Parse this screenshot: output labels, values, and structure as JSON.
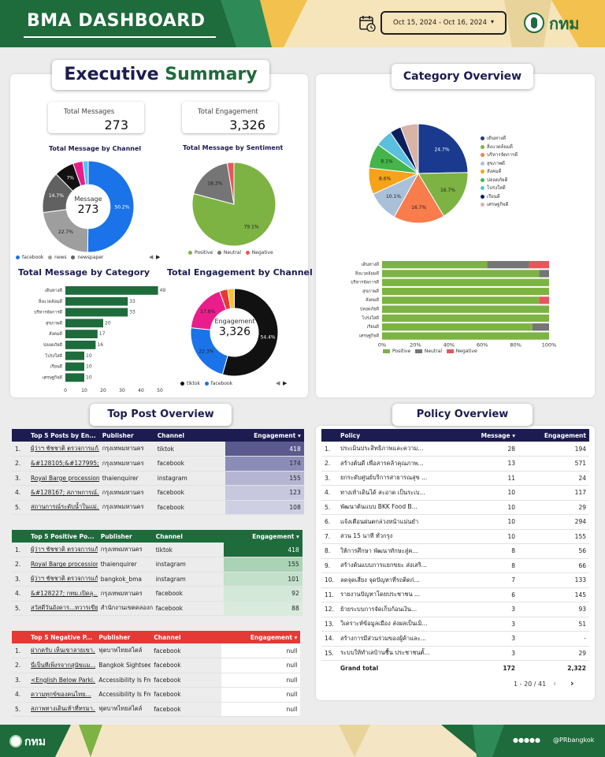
{
  "header": {
    "title": "BMA DASHBOARD",
    "date_range": "Oct 15, 2024 - Oct 16, 2024",
    "logo_text": "กทม"
  },
  "exec": {
    "title1": "Executive",
    "title2": "Summary",
    "kpi_messages_label": "Total Messages",
    "kpi_messages": "273",
    "kpi_engagement_label": "Total Engagement",
    "kpi_engagement": "3,326"
  },
  "colors": {
    "facebook": "#1a73e8",
    "news": "#9e9e9e",
    "newspaper": "#616161",
    "black": "#111111",
    "pink": "#e91e8c",
    "green": "#7cb342",
    "dark_green": "#1e6b3c",
    "negative": "#e5575b",
    "navy": "#1c1c50"
  },
  "chart_data": [
    {
      "type": "pie",
      "title": "Total Message by Channel",
      "center_label": "Message",
      "center_value": "273",
      "labels": [
        "facebook",
        "news",
        "newspaper",
        "instagram",
        "tiktok",
        "other"
      ],
      "values": [
        50.2,
        22.7,
        14.7,
        7.0,
        3.5,
        1.9
      ],
      "slice_labels": [
        "50.2%",
        "22.7%",
        "14.7%",
        "7%",
        "",
        ""
      ],
      "legend": [
        "facebook",
        "news",
        "newspaper"
      ]
    },
    {
      "type": "pie",
      "title": "Total Message by Sentiment",
      "labels": [
        "Positive",
        "Neutral",
        "Negative"
      ],
      "values": [
        79.1,
        18.3,
        2.6
      ],
      "slice_labels": [
        "79.1%",
        "18.3%",
        ""
      ],
      "legend": [
        "Positive",
        "Neutral",
        "Negative"
      ]
    },
    {
      "type": "bar",
      "title": "Total Message by Category",
      "categories": [
        "เดินทางดี",
        "สิ่งแวดล้อมดี",
        "บริหารจัดการดี",
        "สุขภาพดี",
        "สังคมดี",
        "ปลอดภัยดี",
        "โปร่งใสดี",
        "เรียนดี",
        "เศรษฐกิจดี"
      ],
      "values": [
        49,
        33,
        33,
        20,
        17,
        16,
        10,
        10,
        10
      ],
      "xticks": [
        "0",
        "10",
        "20",
        "30",
        "40",
        "50"
      ],
      "xlim": [
        0,
        50
      ]
    },
    {
      "type": "pie",
      "title": "Total Engagement by Channel",
      "center_label": "Engagement",
      "center_value": "3,326",
      "labels": [
        "tiktok",
        "facebook",
        "pink",
        "red",
        "other"
      ],
      "values": [
        54.4,
        22.3,
        17.8,
        3.0,
        2.5
      ],
      "slice_labels": [
        "54.4%",
        "22.3%",
        "17.8%",
        "",
        ""
      ],
      "legend": [
        "tiktok",
        "facebook"
      ]
    },
    {
      "type": "pie",
      "title": "Category Overview",
      "labels": [
        "เดินทางดี",
        "สิ่งแวดล้อมดี",
        "บริหารจัดการดี",
        "สุขภาพดี",
        "สังคมดี",
        "ปลอดภัยดี",
        "โปร่งใสดี",
        "เรียนดี",
        "เศรษฐกิจดี"
      ],
      "values": [
        24.7,
        16.7,
        16.7,
        10.1,
        8.6,
        8.1,
        5.6,
        3.7,
        5.8
      ],
      "slice_labels": [
        "24.7%",
        "16.7%",
        "16.7%",
        "10.1%",
        "8.6%",
        "8.1%",
        "",
        "",
        ""
      ],
      "colors": [
        "#1a3a8f",
        "#7cb342",
        "#f97c4c",
        "#a9c0d8",
        "#f6a21a",
        "#44b549",
        "#5bc0de",
        "#0a1f5c",
        "#d9b3a6"
      ]
    },
    {
      "type": "stacked-bar-100",
      "categories": [
        "เดินทางดี",
        "สิ่งแวดล้อมดี",
        "บริหารจัดการดี",
        "สุขภาพดี",
        "สังคมดี",
        "ปลอดภัยดี",
        "โปร่งใสดี",
        "เรียนดี",
        "เศรษฐกิจดี"
      ],
      "series": [
        {
          "name": "Positive",
          "values": [
            63,
            94,
            100,
            100,
            94,
            100,
            100,
            90,
            100
          ]
        },
        {
          "name": "Neutral",
          "values": [
            25,
            6,
            0,
            0,
            0,
            0,
            0,
            10,
            0
          ]
        },
        {
          "name": "Negative",
          "values": [
            12,
            0,
            0,
            0,
            6,
            0,
            0,
            0,
            0
          ]
        }
      ],
      "xticks": [
        "0%",
        "20%",
        "40%",
        "60%",
        "80%",
        "100%"
      ]
    }
  ],
  "top_posts": {
    "title": "Top Post Overview",
    "t1": {
      "headers": [
        "Top 5 Posts by En...",
        "Publisher",
        "Channel",
        "Engagement ▾"
      ],
      "rows": [
        [
          "1.",
          "ผู้ว่าฯ ชัชชาติ ตรวจการแก้...",
          "กรุงเทพมหานคร",
          "tiktok",
          "418"
        ],
        [
          "2.",
          "&#128105;&#127995;...",
          "กรุงเทพมหานคร",
          "facebook",
          "174"
        ],
        [
          "3.",
          "Royal Barge procession...",
          "thaienquirer",
          "instagram",
          "155"
        ],
        [
          "4.",
          "&#128167; สภาพการณ์...",
          "กรุงเทพมหานคร",
          "facebook",
          "123"
        ],
        [
          "5.",
          "สถานการณ์ระดับน้ำในแม่...",
          "กรุงเทพมหานคร",
          "facebook",
          "108"
        ]
      ]
    },
    "t2": {
      "headers": [
        "Top 5 Positive Po...",
        "Publisher",
        "Channel",
        "Engagement ▾"
      ],
      "rows": [
        [
          "1.",
          "ผู้ว่าฯ ชัชชาติ ตรวจการแก้...",
          "กรุงเทพมหานคร",
          "tiktok",
          "418"
        ],
        [
          "2.",
          "Royal Barge procession...",
          "thaienquirer",
          "instagram",
          "155"
        ],
        [
          "3.",
          "ผู้ว่าฯ ชัชชาติ ตรวจการแก้...",
          "bangkok_bma",
          "instagram",
          "101"
        ],
        [
          "4.",
          "&#128227; กทม.เปิดลุ...",
          "กรุงเทพมหานคร",
          "facebook",
          "92"
        ],
        [
          "5.",
          "สวัสดีวันอังคาร...ทวารเขีย...",
          "สำนักงานเขตคลองกระดัง L...",
          "facebook",
          "88"
        ]
      ]
    },
    "t3": {
      "headers": [
        "Top 5 Negative P...",
        "Publisher",
        "Channel",
        "Engagement ▾"
      ],
      "rows": [
        [
          "1.",
          "ฝากครับ เห็นเขาลายเขา...",
          "ฟุตบาทไทยสไตล์",
          "facebook",
          "null"
        ],
        [
          "2.",
          "นี่เป็นทีเพิ่งรจากสุนัขแม...",
          "Bangkok Sightseeing",
          "facebook",
          "null"
        ],
        [
          "3.",
          "<English Below Parki...",
          "Accessibility Is Freed...",
          "facebook",
          "null"
        ],
        [
          "4.",
          "ความทุกข์ของคนไทย...",
          "Accessibility Is Freed...",
          "facebook",
          "null"
        ],
        [
          "5.",
          "สภาพทางเดินเท้าที่ทรมา...",
          "ฟุตบาทไทยสไตล์",
          "facebook",
          "null"
        ]
      ]
    }
  },
  "policy": {
    "title": "Policy Overview",
    "headers": [
      "Policy",
      "Message ▾",
      "Engagement"
    ],
    "rows": [
      [
        "1.",
        "ประเมินประสิทธิภาพและความ...",
        "28",
        "194"
      ],
      [
        "2.",
        "สร้างต้นดี เพื่อสารคล้าคุณภาพ...",
        "13",
        "571"
      ],
      [
        "3.",
        "ยกระดับศูนย์บริการสาธารณสุข ...",
        "11",
        "24"
      ],
      [
        "4.",
        "ทางเท้าเดินได้ สะอาด เป็นระเบ...",
        "10",
        "117"
      ],
      [
        "5.",
        "พัฒนาต้นแบบ BKK Food B...",
        "10",
        "29"
      ],
      [
        "6.",
        "แจ้งเตือนฝนตกล่วงหน้าแม่นยำ",
        "10",
        "294"
      ],
      [
        "7.",
        "สวน 15 นาที ทั่วกรุง",
        "10",
        "155"
      ],
      [
        "8.",
        "ให้การศึกษา พัฒนาทักษะสู่ค...",
        "8",
        "56"
      ],
      [
        "9.",
        "สร้างต้นแบบการแยกขยะ ส่งเสริ...",
        "8",
        "66"
      ],
      [
        "10.",
        "ลดจุดเสี่ยง จุดปัญหาที่รถติดก่...",
        "7",
        "133"
      ],
      [
        "11.",
        "รายงานปัญหาโดยประชาชน ...",
        "6",
        "145"
      ],
      [
        "12.",
        "ย้ายระบบการจัดเก็บก้อนเงิน...",
        "3",
        "93"
      ],
      [
        "13.",
        "วิเคราะห์ข้อมูลเมือง ส่งผลเป็นเมิ...",
        "3",
        "51"
      ],
      [
        "14.",
        "สร้างการมีส่วนร่วมของผู้ค้าและ...",
        "3",
        "-"
      ],
      [
        "15.",
        "ระบบให้ทำเลบ้านชื้น ประชาชนตั้...",
        "3",
        "29"
      ]
    ],
    "grand_total_label": "Grand total",
    "grand_total_message": "172",
    "grand_total_engagement": "2,322",
    "pagination": "1 - 20 / 41"
  },
  "footer": {
    "logo_text": "กทม",
    "handle": "@PRbangkok"
  }
}
